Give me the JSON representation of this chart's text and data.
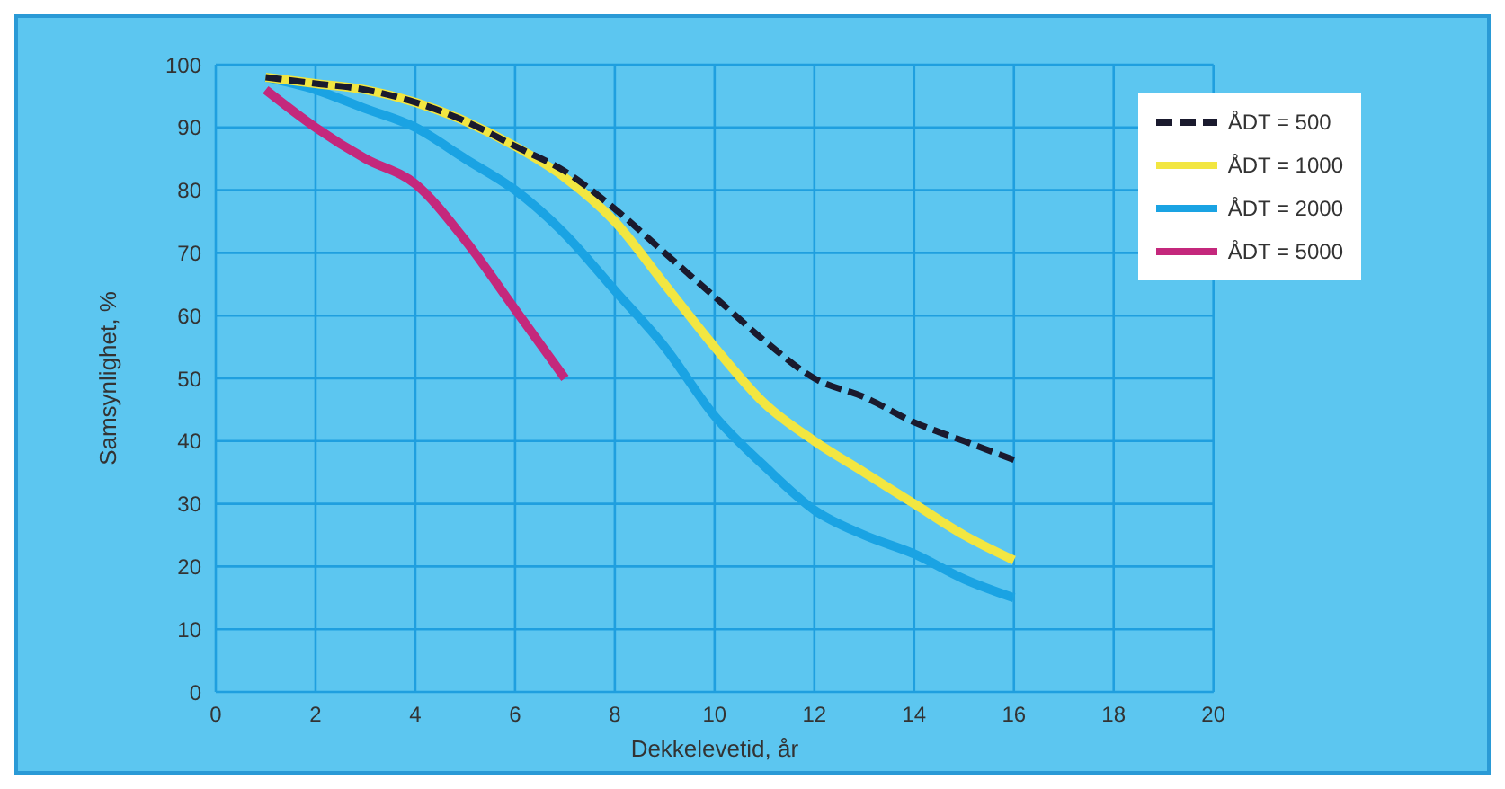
{
  "chart_data": {
    "type": "line",
    "xlabel": "Dekkelevetid, år",
    "ylabel": "Samsynlighet, %",
    "x": [
      1,
      2,
      3,
      4,
      5,
      6,
      7,
      8,
      9,
      10,
      11,
      12,
      13,
      14,
      15,
      16
    ],
    "series": [
      {
        "name": "ÅDT =  500",
        "color": "#1a1a2e",
        "line_style": "dashed",
        "values": [
          98,
          97,
          96,
          94,
          91,
          87,
          83,
          77,
          70,
          63,
          56,
          50,
          47,
          43,
          40,
          37
        ]
      },
      {
        "name": "ÅDT = 1000",
        "color": "#f2e641",
        "values": [
          98,
          97,
          96,
          94,
          91,
          87,
          82,
          75,
          65,
          55,
          46,
          40,
          35,
          30,
          25,
          21
        ]
      },
      {
        "name": "ÅDT = 2000",
        "color": "#1aa3e3",
        "values": [
          98,
          96,
          93,
          90,
          85,
          80,
          73,
          64,
          55,
          44,
          36,
          29,
          25,
          22,
          18,
          15
        ]
      },
      {
        "name": "ÅDT = 5000",
        "color": "#c4287c",
        "values": [
          96,
          90,
          85,
          81,
          72,
          61,
          50,
          null,
          null,
          null,
          null,
          null,
          null,
          null,
          null,
          null
        ]
      }
    ],
    "xlim": [
      0,
      20
    ],
    "xticks": [
      0,
      2,
      4,
      6,
      8,
      10,
      12,
      14,
      16,
      18,
      20
    ],
    "ylim": [
      0,
      100
    ],
    "yticks": [
      0,
      10,
      20,
      30,
      40,
      50,
      60,
      70,
      80,
      90,
      100
    ],
    "grid": true,
    "legend": "top right",
    "marker": "none",
    "line_style": "solid"
  }
}
